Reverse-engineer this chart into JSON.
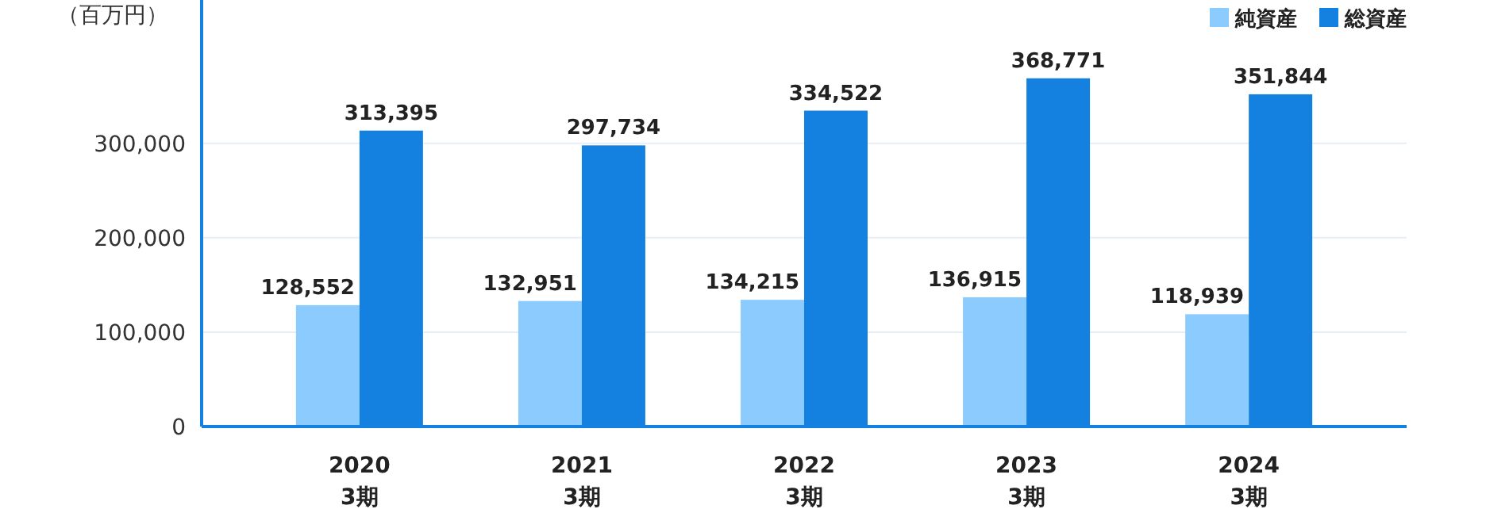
{
  "chart_data": {
    "type": "bar",
    "ylabel": "（百万円）",
    "categories": [
      "2020 3期",
      "2021 3期",
      "2022 3期",
      "2023 3期",
      "2024 3期"
    ],
    "series": [
      {
        "name": "純資産",
        "color": "#8ccbfd",
        "values": [
          128552,
          132951,
          134215,
          136915,
          118939
        ],
        "value_labels": [
          "128,552",
          "132,951",
          "134,215",
          "136,915",
          "118,939"
        ]
      },
      {
        "name": "総資産",
        "color": "#1480e0",
        "values": [
          313395,
          297734,
          334522,
          368771,
          351844
        ],
        "value_labels": [
          "313,395",
          "297,734",
          "334,522",
          "368,771",
          "351,844"
        ]
      }
    ],
    "ylim": [
      0,
      450000
    ],
    "yticks": [
      0,
      {
        "value": 100000,
        "label": "100,000"
      },
      {
        "value": 200000,
        "label": "200,000"
      },
      {
        "value": 300000,
        "label": "300,000"
      }
    ],
    "grid": "y",
    "legend": "top right"
  }
}
